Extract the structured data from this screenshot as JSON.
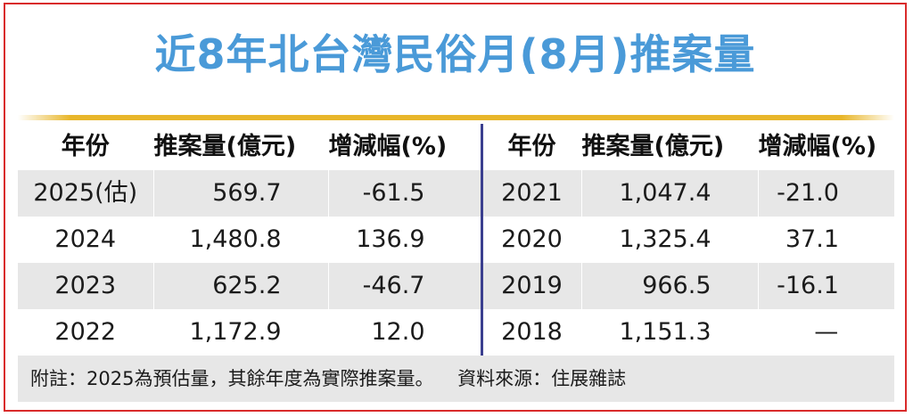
{
  "title": "近8年北台灣民俗月(8月)推案量",
  "headers": {
    "year": "年份",
    "amount": "推案量(億元)",
    "change": "增減幅(%)"
  },
  "left_rows": [
    {
      "year": "2025(估)",
      "amount": "569.7",
      "change": "-61.5"
    },
    {
      "year": "2024",
      "amount": "1,480.8",
      "change": "136.9"
    },
    {
      "year": "2023",
      "amount": "625.2",
      "change": "-46.7"
    },
    {
      "year": "2022",
      "amount": "1,172.9",
      "change": "12.0"
    }
  ],
  "right_rows": [
    {
      "year": "2021",
      "amount": "1,047.4",
      "change": "-21.0"
    },
    {
      "year": "2020",
      "amount": "1,325.4",
      "change": "37.1"
    },
    {
      "year": "2019",
      "amount": "966.5",
      "change": "-16.1"
    },
    {
      "year": "2018",
      "amount": "1,151.3",
      "change": "—"
    }
  ],
  "footnote": {
    "note": "附註：2025為預估量，其餘年度為實際推案量。",
    "source": "資料來源：住展雜誌"
  },
  "colors": {
    "title": "#4a9ad8",
    "frame": "#d92b2b",
    "rule": "#e8b62a",
    "divider": "#3b3f8f",
    "stripe": "#e7e7e7"
  }
}
